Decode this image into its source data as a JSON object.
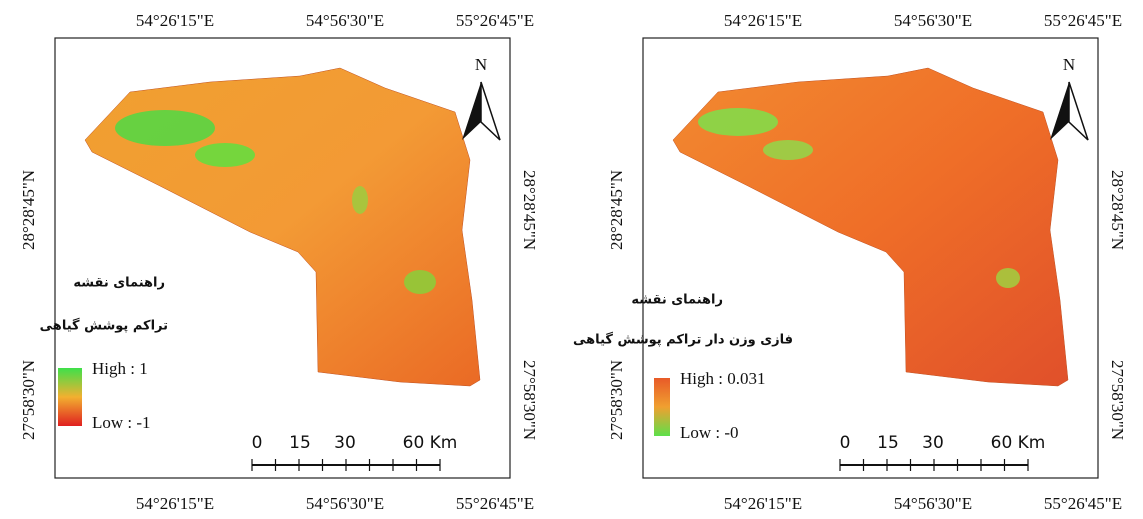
{
  "maps": [
    {
      "top_labels": [
        "54°26'15\"E",
        "54°56'30\"E",
        "55°26'45\"E"
      ],
      "bottom_labels": [
        "54°26'15\"E",
        "54°56'30\"E",
        "55°26'45\"E"
      ],
      "left_labels": [
        "28°28'45\"N",
        "27°58'30\"N"
      ],
      "right_labels": [
        "28°28'45\"N",
        "27°58'30\"N"
      ],
      "north": "N",
      "legend": {
        "title": "راهنمای نقشه",
        "subtitle": "تراکم پوشش گیاهی",
        "high": "High : 1",
        "low": "Low : -1"
      },
      "scale": [
        "0",
        "15",
        "30",
        "60 Km"
      ]
    },
    {
      "top_labels": [
        "54°26'15\"E",
        "54°56'30\"E",
        "55°26'45\"E"
      ],
      "bottom_labels": [
        "54°26'15\"E",
        "54°56'30\"E",
        "55°26'45\"E"
      ],
      "left_labels": [
        "28°28'45\"N",
        "27°58'30\"N"
      ],
      "right_labels": [
        "28°28'45\"N",
        "27°58'30\"N"
      ],
      "north": "N",
      "legend": {
        "title": "راهنمای نقشه",
        "subtitle": "فازی وزن دار تراکم پوشش گیاهی",
        "high": "High : 0.031",
        "low": "Low : -0"
      },
      "scale": [
        "0",
        "15",
        "30",
        "60 Km"
      ]
    }
  ]
}
